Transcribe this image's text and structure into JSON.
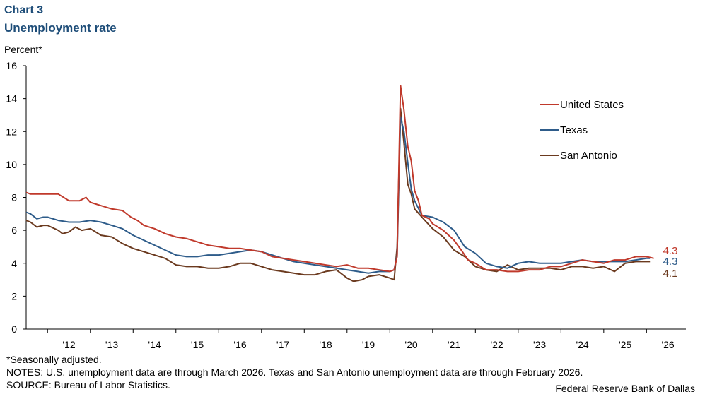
{
  "header": {
    "chart_label": "Chart 3",
    "title": "Unemployment rate"
  },
  "footer": {
    "footnote": "*Seasonally adjusted.",
    "notes": "NOTES: U.S. unemployment data are through March 2026. Texas and San Antonio unemployment data are through February 2026.",
    "source": "SOURCE: Bureau of Labor Statistics.",
    "credit": "Federal Reserve Bank of Dallas"
  },
  "chart_data": {
    "type": "line",
    "title": "Unemployment rate",
    "xlabel": "",
    "ylabel": "Percent*",
    "ylim": [
      0,
      16
    ],
    "yticks": [
      0,
      2,
      4,
      6,
      8,
      10,
      12,
      14,
      16
    ],
    "xlim": [
      2011.5,
      2026.92
    ],
    "xtick_labels": [
      "'12",
      "'13",
      "'14",
      "'15",
      "'16",
      "'17",
      "'18",
      "'19",
      "'20",
      "'21",
      "'22",
      "'23",
      "'24",
      "'25",
      "'26"
    ],
    "legend_position": "top-right",
    "series": [
      {
        "name": "United States",
        "color": "#c0392b",
        "end_label": "4.3",
        "points": [
          [
            2011.5,
            8.3
          ],
          [
            2011.6,
            8.2
          ],
          [
            2012.0,
            8.2
          ],
          [
            2012.25,
            8.2
          ],
          [
            2012.5,
            7.8
          ],
          [
            2012.75,
            7.8
          ],
          [
            2012.9,
            8.0
          ],
          [
            2013.0,
            7.7
          ],
          [
            2013.25,
            7.5
          ],
          [
            2013.5,
            7.3
          ],
          [
            2013.75,
            7.2
          ],
          [
            2013.95,
            6.8
          ],
          [
            2014.1,
            6.6
          ],
          [
            2014.25,
            6.3
          ],
          [
            2014.5,
            6.1
          ],
          [
            2014.75,
            5.8
          ],
          [
            2015.0,
            5.6
          ],
          [
            2015.25,
            5.5
          ],
          [
            2015.5,
            5.3
          ],
          [
            2015.75,
            5.1
          ],
          [
            2016.0,
            5.0
          ],
          [
            2016.25,
            4.9
          ],
          [
            2016.5,
            4.9
          ],
          [
            2016.75,
            4.8
          ],
          [
            2017.0,
            4.7
          ],
          [
            2017.25,
            4.4
          ],
          [
            2017.5,
            4.3
          ],
          [
            2017.75,
            4.2
          ],
          [
            2018.0,
            4.1
          ],
          [
            2018.25,
            4.0
          ],
          [
            2018.5,
            3.9
          ],
          [
            2018.75,
            3.8
          ],
          [
            2019.0,
            3.9
          ],
          [
            2019.25,
            3.7
          ],
          [
            2019.5,
            3.7
          ],
          [
            2019.75,
            3.6
          ],
          [
            2020.0,
            3.5
          ],
          [
            2020.1,
            3.6
          ],
          [
            2020.17,
            4.4
          ],
          [
            2020.25,
            14.8
          ],
          [
            2020.33,
            13.3
          ],
          [
            2020.42,
            11.1
          ],
          [
            2020.5,
            10.2
          ],
          [
            2020.58,
            8.4
          ],
          [
            2020.67,
            7.8
          ],
          [
            2020.75,
            6.9
          ],
          [
            2020.92,
            6.7
          ],
          [
            2021.0,
            6.4
          ],
          [
            2021.25,
            6.0
          ],
          [
            2021.5,
            5.4
          ],
          [
            2021.67,
            4.8
          ],
          [
            2021.83,
            4.2
          ],
          [
            2022.0,
            4.0
          ],
          [
            2022.25,
            3.6
          ],
          [
            2022.5,
            3.6
          ],
          [
            2022.75,
            3.5
          ],
          [
            2023.0,
            3.5
          ],
          [
            2023.25,
            3.6
          ],
          [
            2023.5,
            3.6
          ],
          [
            2023.75,
            3.8
          ],
          [
            2024.0,
            3.8
          ],
          [
            2024.25,
            4.0
          ],
          [
            2024.5,
            4.2
          ],
          [
            2024.75,
            4.1
          ],
          [
            2025.0,
            4.0
          ],
          [
            2025.25,
            4.2
          ],
          [
            2025.5,
            4.2
          ],
          [
            2025.75,
            4.4
          ],
          [
            2026.0,
            4.4
          ],
          [
            2026.17,
            4.3
          ]
        ]
      },
      {
        "name": "Texas",
        "color": "#2e5c8a",
        "end_label": "4.3",
        "points": [
          [
            2011.5,
            7.1
          ],
          [
            2011.6,
            7.0
          ],
          [
            2011.75,
            6.7
          ],
          [
            2011.9,
            6.8
          ],
          [
            2012.0,
            6.8
          ],
          [
            2012.25,
            6.6
          ],
          [
            2012.5,
            6.5
          ],
          [
            2012.75,
            6.5
          ],
          [
            2013.0,
            6.6
          ],
          [
            2013.25,
            6.5
          ],
          [
            2013.5,
            6.3
          ],
          [
            2013.75,
            6.1
          ],
          [
            2014.0,
            5.7
          ],
          [
            2014.25,
            5.4
          ],
          [
            2014.5,
            5.1
          ],
          [
            2014.75,
            4.8
          ],
          [
            2015.0,
            4.5
          ],
          [
            2015.25,
            4.4
          ],
          [
            2015.5,
            4.4
          ],
          [
            2015.75,
            4.5
          ],
          [
            2016.0,
            4.5
          ],
          [
            2016.25,
            4.6
          ],
          [
            2016.5,
            4.7
          ],
          [
            2016.75,
            4.8
          ],
          [
            2017.0,
            4.7
          ],
          [
            2017.25,
            4.5
          ],
          [
            2017.5,
            4.3
          ],
          [
            2017.75,
            4.1
          ],
          [
            2018.0,
            4.0
          ],
          [
            2018.25,
            3.9
          ],
          [
            2018.5,
            3.8
          ],
          [
            2018.75,
            3.7
          ],
          [
            2019.0,
            3.6
          ],
          [
            2019.25,
            3.5
          ],
          [
            2019.5,
            3.4
          ],
          [
            2019.75,
            3.5
          ],
          [
            2020.0,
            3.5
          ],
          [
            2020.1,
            3.6
          ],
          [
            2020.17,
            4.5
          ],
          [
            2020.25,
            12.9
          ],
          [
            2020.33,
            12.0
          ],
          [
            2020.42,
            10.1
          ],
          [
            2020.5,
            8.5
          ],
          [
            2020.58,
            7.8
          ],
          [
            2020.75,
            6.9
          ],
          [
            2021.0,
            6.8
          ],
          [
            2021.25,
            6.5
          ],
          [
            2021.5,
            6.0
          ],
          [
            2021.75,
            5.0
          ],
          [
            2022.0,
            4.6
          ],
          [
            2022.25,
            4.0
          ],
          [
            2022.5,
            3.8
          ],
          [
            2022.75,
            3.7
          ],
          [
            2023.0,
            4.0
          ],
          [
            2023.25,
            4.1
          ],
          [
            2023.5,
            4.0
          ],
          [
            2023.75,
            4.0
          ],
          [
            2024.0,
            4.0
          ],
          [
            2024.25,
            4.1
          ],
          [
            2024.5,
            4.2
          ],
          [
            2024.75,
            4.1
          ],
          [
            2025.0,
            4.1
          ],
          [
            2025.25,
            4.1
          ],
          [
            2025.5,
            4.1
          ],
          [
            2025.75,
            4.2
          ],
          [
            2026.0,
            4.3
          ],
          [
            2026.08,
            4.3
          ]
        ]
      },
      {
        "name": "San Antonio",
        "color": "#6b3a1f",
        "end_label": "4.1",
        "points": [
          [
            2011.5,
            6.6
          ],
          [
            2011.6,
            6.5
          ],
          [
            2011.75,
            6.2
          ],
          [
            2011.9,
            6.3
          ],
          [
            2012.0,
            6.3
          ],
          [
            2012.25,
            6.0
          ],
          [
            2012.35,
            5.8
          ],
          [
            2012.5,
            5.9
          ],
          [
            2012.65,
            6.2
          ],
          [
            2012.8,
            6.0
          ],
          [
            2013.0,
            6.1
          ],
          [
            2013.25,
            5.7
          ],
          [
            2013.5,
            5.6
          ],
          [
            2013.75,
            5.2
          ],
          [
            2014.0,
            4.9
          ],
          [
            2014.25,
            4.7
          ],
          [
            2014.5,
            4.5
          ],
          [
            2014.75,
            4.3
          ],
          [
            2015.0,
            3.9
          ],
          [
            2015.25,
            3.8
          ],
          [
            2015.5,
            3.8
          ],
          [
            2015.75,
            3.7
          ],
          [
            2016.0,
            3.7
          ],
          [
            2016.25,
            3.8
          ],
          [
            2016.5,
            4.0
          ],
          [
            2016.75,
            4.0
          ],
          [
            2017.0,
            3.8
          ],
          [
            2017.25,
            3.6
          ],
          [
            2017.5,
            3.5
          ],
          [
            2017.75,
            3.4
          ],
          [
            2018.0,
            3.3
          ],
          [
            2018.25,
            3.3
          ],
          [
            2018.5,
            3.5
          ],
          [
            2018.75,
            3.6
          ],
          [
            2019.0,
            3.1
          ],
          [
            2019.15,
            2.9
          ],
          [
            2019.35,
            3.0
          ],
          [
            2019.5,
            3.2
          ],
          [
            2019.75,
            3.3
          ],
          [
            2020.0,
            3.1
          ],
          [
            2020.1,
            3.0
          ],
          [
            2020.17,
            5.0
          ],
          [
            2020.25,
            13.4
          ],
          [
            2020.33,
            11.3
          ],
          [
            2020.42,
            8.8
          ],
          [
            2020.5,
            8.2
          ],
          [
            2020.58,
            7.3
          ],
          [
            2020.75,
            6.8
          ],
          [
            2021.0,
            6.1
          ],
          [
            2021.25,
            5.6
          ],
          [
            2021.5,
            4.8
          ],
          [
            2021.75,
            4.4
          ],
          [
            2022.0,
            3.8
          ],
          [
            2022.25,
            3.6
          ],
          [
            2022.5,
            3.5
          ],
          [
            2022.75,
            3.9
          ],
          [
            2023.0,
            3.6
          ],
          [
            2023.25,
            3.7
          ],
          [
            2023.5,
            3.7
          ],
          [
            2023.75,
            3.7
          ],
          [
            2024.0,
            3.6
          ],
          [
            2024.25,
            3.8
          ],
          [
            2024.5,
            3.8
          ],
          [
            2024.75,
            3.7
          ],
          [
            2025.0,
            3.8
          ],
          [
            2025.25,
            3.5
          ],
          [
            2025.5,
            4.0
          ],
          [
            2025.75,
            4.1
          ],
          [
            2026.0,
            4.1
          ],
          [
            2026.08,
            4.1
          ]
        ]
      }
    ]
  }
}
